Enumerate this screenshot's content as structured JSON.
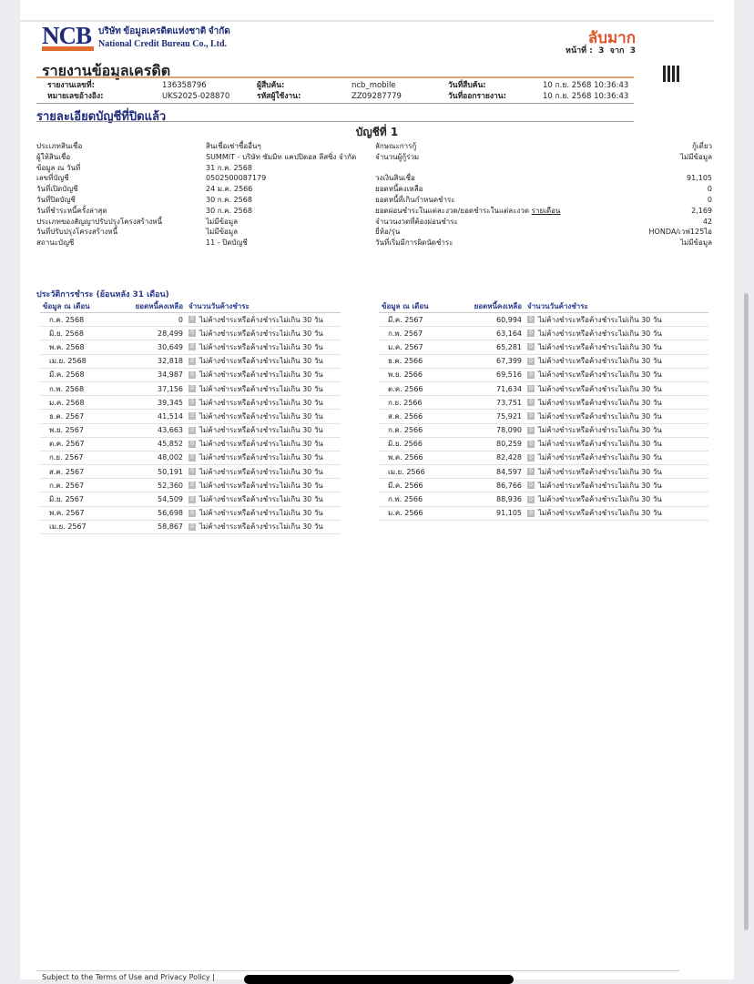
{
  "header": {
    "logo": "NCB",
    "logo_sub": "National Credit Bureau",
    "company_th": "บริษัท ข้อมูลเครดิตแห่งชาติ จำกัด",
    "company_en": "National Credit Bureau Co., Ltd.",
    "classification": "ลับมาก",
    "page_label": "หน้าที่ :",
    "page": "3",
    "of_label": "จาก",
    "total_pages": "3",
    "report_title": "รายงานข้อมูลเครดิต"
  },
  "meta": {
    "report_no_label": "รายงานเลขที่:",
    "report_no": "136358796",
    "ref_label": "หมายเลขอ้างอิง:",
    "ref": "UKS2025-028870",
    "searcher_label": "ผู้สืบค้น:",
    "searcher": "ncb_mobile",
    "user_code_label": "รหัสผู้ใช้งาน:",
    "user_code": "ZZ09287779",
    "search_date_label": "วันที่สืบค้น:",
    "search_date": "10 ก.ย. 2568 10:36:43",
    "issue_date_label": "วันที่ออกรายงาน:",
    "issue_date": "10 ก.ย. 2568 10:36:43"
  },
  "section_title": "รายละเอียดบัญชีที่ปิดแล้ว",
  "account": {
    "title": "บัญชีที่ 1",
    "left": [
      {
        "label": "ประเภทสินเชื่อ",
        "value": "สินเชื่อเช่าซื้ออื่นๆ"
      },
      {
        "label": "ผู้ให้สินเชื่อ",
        "value": "SUMMIT - บริษัท ซัมมิท แคปปิตอล ลีสซิ่ง จำกัด"
      },
      {
        "label": "ข้อมูล ณ วันที่",
        "value": "31 ก.ค. 2568"
      },
      {
        "label": "เลขที่บัญชี",
        "value": "0502500087179"
      },
      {
        "label": "วันที่เปิดบัญชี",
        "value": "24 ม.ค. 2566"
      },
      {
        "label": "วันที่ปิดบัญชี",
        "value": "30 ก.ค. 2568"
      },
      {
        "label": "วันที่ชำระหนี้ครั้งล่าสุด",
        "value": "30 ก.ค. 2568"
      },
      {
        "label": "ประเภทของสัญญาปรับปรุงโครงสร้างหนี้",
        "value": "ไม่มีข้อมูล"
      },
      {
        "label": "วันที่ปรับปรุงโครงสร้างหนี้",
        "value": "ไม่มีข้อมูล"
      },
      {
        "label": "สถานะบัญชี",
        "value": "11 - ปิดบัญชี"
      }
    ],
    "right": [
      {
        "label": "ลักษณะการกู้",
        "value": "กู้เดี่ยว"
      },
      {
        "label": "จำนวนผู้กู้ร่วม",
        "value": "ไม่มีข้อมูล"
      },
      {
        "label": "วงเงินสินเชื่อ",
        "value": "91,105"
      },
      {
        "label": "ยอดหนี้คงเหลือ",
        "value": "0"
      },
      {
        "label": "ยอดหนี้ที่เกินกำหนดชำระ",
        "value": "0"
      },
      {
        "label": "ยอดผ่อนชำระในแต่ละงวด/ยอดชำระในแต่ละงวด",
        "label_link": "รายเดือน",
        "value": "2,169"
      },
      {
        "label": "จำนวนงวดที่ต้องผ่อนชำระ",
        "value": "42"
      },
      {
        "label": "ยี่ห้อ/รุ่น",
        "value": "HONDA/เวฟ125ไอ"
      },
      {
        "label": "วันที่เริ่มมีการผิดนัดชำระ",
        "value": "ไม่มีข้อมูล"
      }
    ]
  },
  "history": {
    "title": "ประวัติการชำระ (ย้อนหลัง 31 เดือน)",
    "headers": [
      "ข้อมูล ณ เดือน",
      "ยอดหนี้คงเหลือ",
      "จำนวนวันค้างชำระ"
    ],
    "status_code": "0",
    "status_text": "ไม่ค้างชำระหรือค้างชำระไม่เกิน 30 วัน",
    "left": [
      [
        "ก.ค. 2568",
        "0"
      ],
      [
        "มิ.ย. 2568",
        "28,499"
      ],
      [
        "พ.ค. 2568",
        "30,649"
      ],
      [
        "เม.ย. 2568",
        "32,818"
      ],
      [
        "มี.ค. 2568",
        "34,987"
      ],
      [
        "ก.พ. 2568",
        "37,156"
      ],
      [
        "ม.ค. 2568",
        "39,345"
      ],
      [
        "ธ.ค. 2567",
        "41,514"
      ],
      [
        "พ.ย. 2567",
        "43,663"
      ],
      [
        "ต.ค. 2567",
        "45,852"
      ],
      [
        "ก.ย. 2567",
        "48,002"
      ],
      [
        "ส.ค. 2567",
        "50,191"
      ],
      [
        "ก.ค. 2567",
        "52,360"
      ],
      [
        "มิ.ย. 2567",
        "54,509"
      ],
      [
        "พ.ค. 2567",
        "56,698"
      ],
      [
        "เม.ย. 2567",
        "58,867"
      ]
    ],
    "right": [
      [
        "มี.ค. 2567",
        "60,994"
      ],
      [
        "ก.พ. 2567",
        "63,164"
      ],
      [
        "ม.ค. 2567",
        "65,281"
      ],
      [
        "ธ.ค. 2566",
        "67,399"
      ],
      [
        "พ.ย. 2566",
        "69,516"
      ],
      [
        "ต.ค. 2566",
        "71,634"
      ],
      [
        "ก.ย. 2566",
        "73,751"
      ],
      [
        "ส.ค. 2566",
        "75,921"
      ],
      [
        "ก.ค. 2566",
        "78,090"
      ],
      [
        "มิ.ย. 2566",
        "80,259"
      ],
      [
        "พ.ค. 2566",
        "82,428"
      ],
      [
        "เม.ย. 2566",
        "84,597"
      ],
      [
        "มี.ค. 2566",
        "86,766"
      ],
      [
        "ก.พ. 2566",
        "88,936"
      ],
      [
        "ม.ค. 2566",
        "91,105"
      ]
    ]
  },
  "footer": {
    "text": "Subject to the Terms of Use and Privacy Policy  |"
  }
}
